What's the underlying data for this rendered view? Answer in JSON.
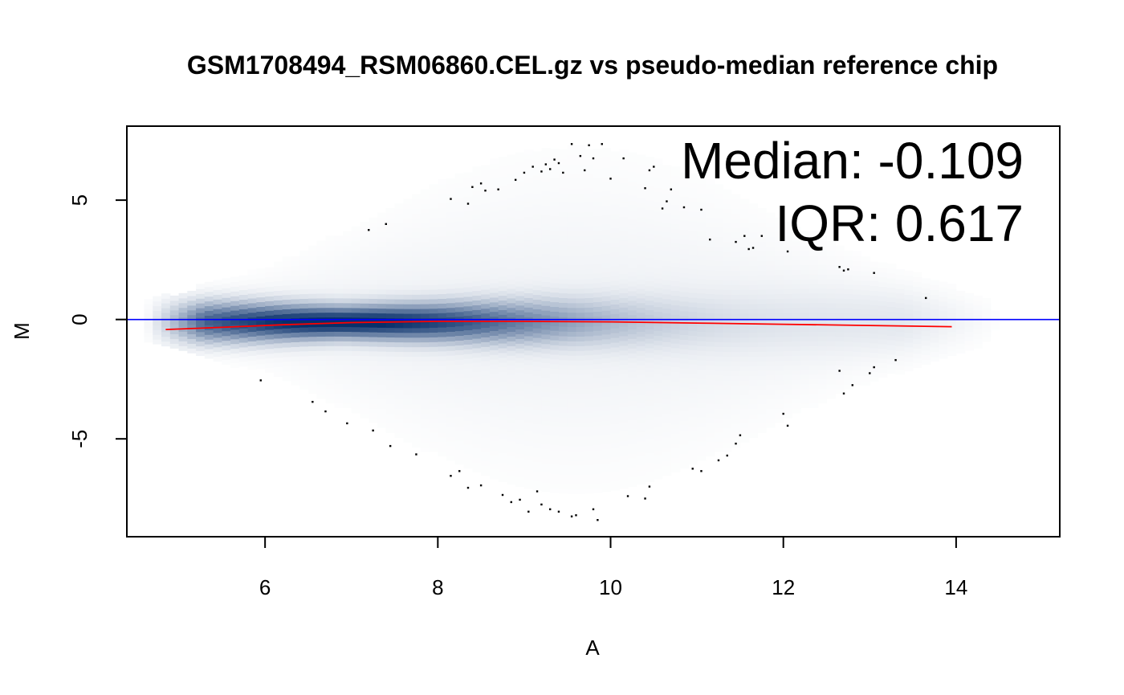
{
  "chart_data": {
    "type": "scatter",
    "title": "GSM1708494_RSM06860.CEL.gz vs pseudo-median reference chip",
    "xlabel": "A",
    "ylabel": "M",
    "xlim": [
      4.4,
      15.2
    ],
    "ylim": [
      -9.1,
      8.1
    ],
    "x_ticks": [
      6,
      8,
      10,
      12,
      14
    ],
    "y_ticks": [
      -5,
      0,
      5
    ],
    "x_tick_labels": [
      "6",
      "8",
      "10",
      "12",
      "14"
    ],
    "y_tick_labels": [
      "-5",
      "0",
      "5"
    ],
    "grid": false,
    "density": {
      "color_low": "#ffffff",
      "color_high": "#08306b",
      "x_range": [
        4.6,
        14.6
      ],
      "center_x": 6.9,
      "center_y": -0.1
    },
    "annotations": {
      "median": "Median: -0.109",
      "iqr": "IQR: 0.617"
    },
    "reference_line": {
      "y": 0,
      "color": "#0000ff"
    },
    "loess": {
      "color": "#ff0000",
      "x": [
        4.85,
        5.5,
        6.2,
        7.0,
        8.0,
        9.0,
        10.0,
        11.0,
        12.0,
        13.0,
        13.95
      ],
      "y": [
        -0.42,
        -0.33,
        -0.22,
        -0.13,
        -0.08,
        -0.08,
        -0.1,
        -0.15,
        -0.2,
        -0.25,
        -0.3
      ]
    },
    "outliers": {
      "color": "#000000",
      "x": [
        7.2,
        7.4,
        8.15,
        8.35,
        8.4,
        8.5,
        8.55,
        8.7,
        8.9,
        9.0,
        9.1,
        9.2,
        9.25,
        9.3,
        9.35,
        9.4,
        9.45,
        9.55,
        9.65,
        9.7,
        9.75,
        9.8,
        9.9,
        10.0,
        10.15,
        10.4,
        10.45,
        10.5,
        10.6,
        10.65,
        10.7,
        10.85,
        11.05,
        11.15,
        11.45,
        11.55,
        11.6,
        11.65,
        11.75,
        12.05,
        12.65,
        12.7,
        12.75,
        13.05,
        13.65,
        5.95,
        6.55,
        6.7,
        6.95,
        7.25,
        7.45,
        7.75,
        8.15,
        8.25,
        8.35,
        8.5,
        8.75,
        8.85,
        8.95,
        9.05,
        9.15,
        9.2,
        9.3,
        9.4,
        9.55,
        9.6,
        9.8,
        9.85,
        10.2,
        10.4,
        10.45,
        10.95,
        11.05,
        11.25,
        11.35,
        11.45,
        11.5,
        12.0,
        12.05,
        12.65,
        12.7,
        12.8,
        13.0,
        13.05,
        13.3
      ],
      "y": [
        3.75,
        4.0,
        5.05,
        4.85,
        5.55,
        5.7,
        5.4,
        5.45,
        5.85,
        6.15,
        6.4,
        6.2,
        6.5,
        6.3,
        6.7,
        6.55,
        6.15,
        7.35,
        6.85,
        6.25,
        7.3,
        6.75,
        7.35,
        5.9,
        6.75,
        5.5,
        6.25,
        6.4,
        4.65,
        4.95,
        5.45,
        4.7,
        4.6,
        3.35,
        3.25,
        3.5,
        2.95,
        3.0,
        3.5,
        2.85,
        2.2,
        2.05,
        2.1,
        1.95,
        0.9,
        -2.55,
        -3.45,
        -3.85,
        -4.35,
        -4.65,
        -5.3,
        -5.65,
        -6.55,
        -6.35,
        -7.05,
        -6.95,
        -7.35,
        -7.65,
        -7.55,
        -8.05,
        -7.2,
        -7.75,
        -7.95,
        -8.05,
        -8.25,
        -8.2,
        -7.95,
        -8.4,
        -7.4,
        -7.5,
        -7.0,
        -6.25,
        -6.35,
        -5.9,
        -5.7,
        -5.2,
        -4.85,
        -3.95,
        -4.45,
        -2.15,
        -3.1,
        -2.75,
        -2.25,
        -2.0,
        -1.7
      ]
    }
  }
}
